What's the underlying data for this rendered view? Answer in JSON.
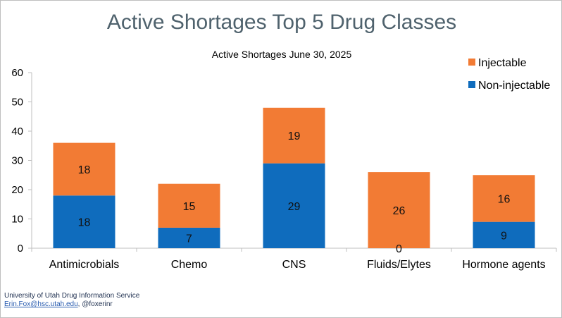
{
  "chart_data": {
    "type": "bar",
    "stacked": true,
    "title": "Active Shortages Top 5 Drug Classes",
    "subtitle": "Active Shortages June 30, 2025",
    "categories": [
      "Antimicrobials",
      "Chemo",
      "CNS",
      "Fluids/Elytes",
      "Hormone agents"
    ],
    "series": [
      {
        "name": "Non-injectable",
        "color": "#0f6cbd",
        "values": [
          18,
          7,
          29,
          0,
          9
        ]
      },
      {
        "name": "Injectable",
        "color": "#f27b34",
        "values": [
          18,
          15,
          19,
          26,
          16
        ]
      }
    ],
    "legend_order": [
      1,
      0
    ],
    "legend_position": "top-right",
    "ylim": [
      0,
      60
    ],
    "yticks": [
      "0",
      "10",
      "20",
      "30",
      "40",
      "50",
      "60"
    ],
    "xlabel": "",
    "ylabel": "",
    "grid": false
  },
  "footer": {
    "org": "University of Utah Drug Information Service",
    "email": "Erin.Fox@hsc.utah.edu",
    "handle": ", @foxerinr"
  }
}
